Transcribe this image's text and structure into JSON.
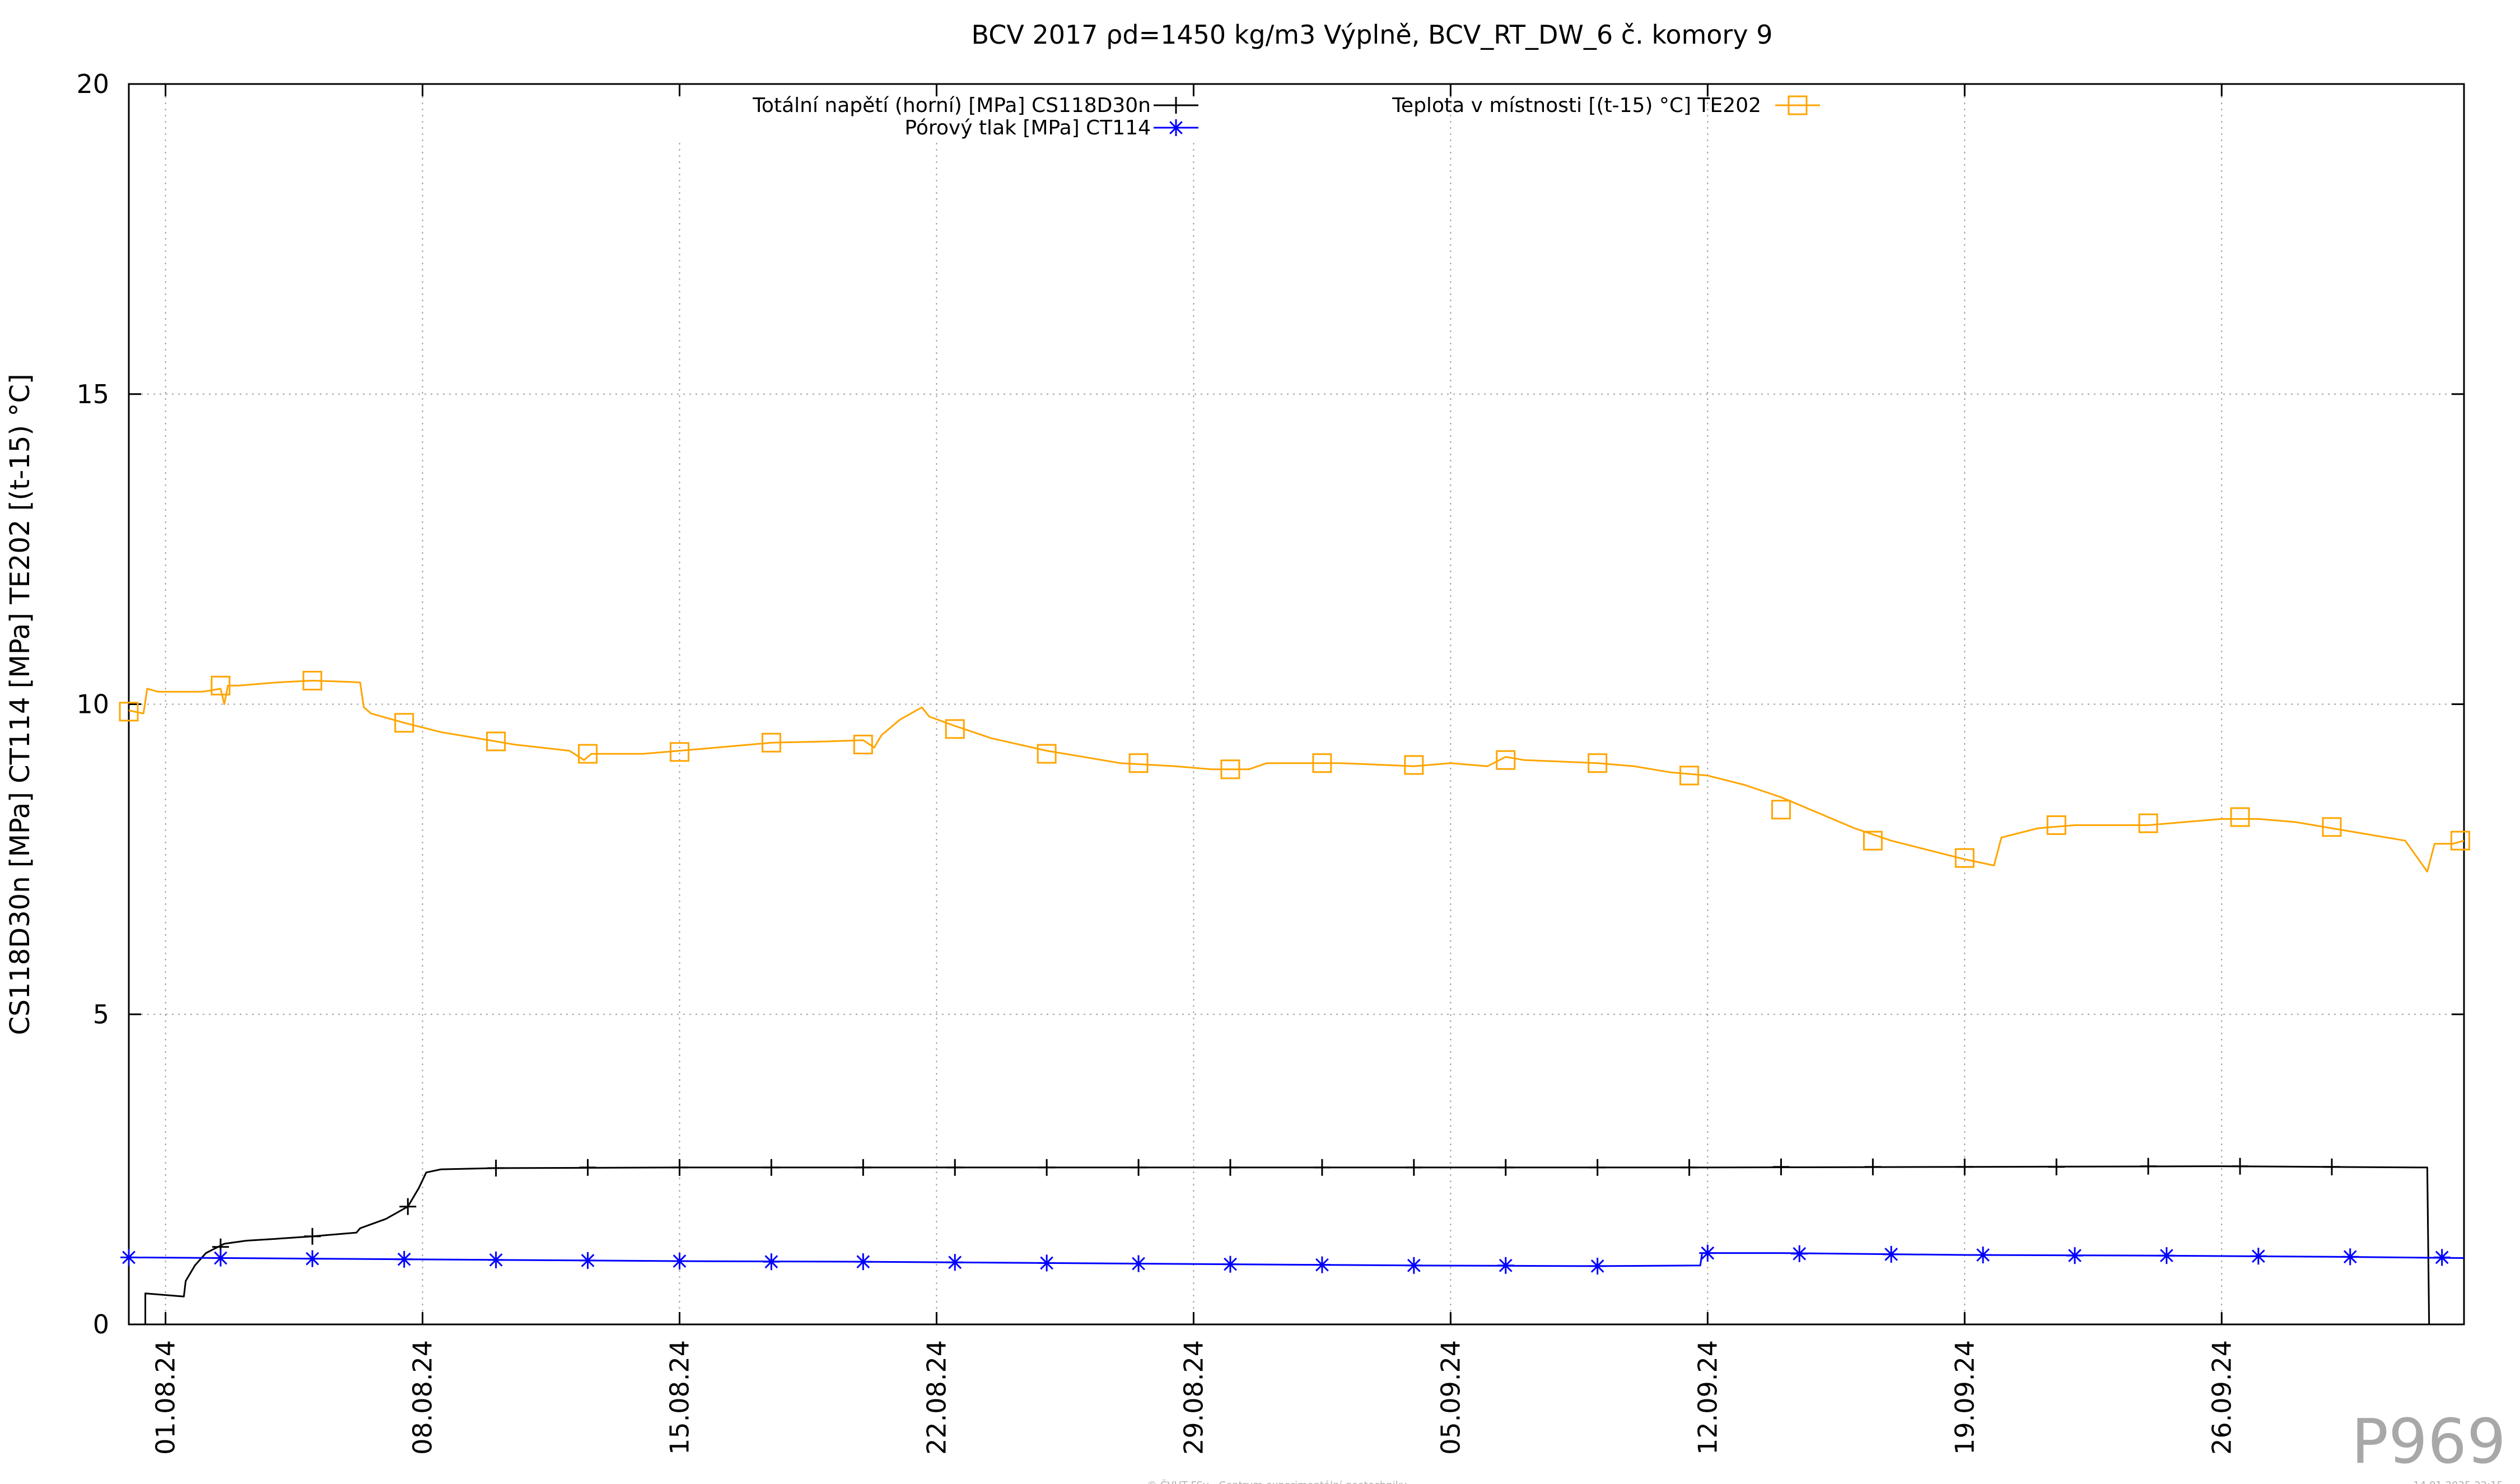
{
  "chart_data": {
    "type": "line",
    "title": "BCV 2017 ρd=1450 kg/m3 Výplně, BCV_RT_DW_6 č. komory 9",
    "ylabel": "CS118D30n [MPa] CT114 [MPa] TE202 [(t-15) °C]",
    "xlabel": "",
    "ylim": [
      0,
      20
    ],
    "yticks": [
      0,
      5,
      10,
      15,
      20
    ],
    "x_unit": "days since 30.07.24",
    "xlim": [
      0,
      63.6
    ],
    "xticks": [
      {
        "x": 1,
        "label": "01.08.24"
      },
      {
        "x": 8,
        "label": "08.08.24"
      },
      {
        "x": 15,
        "label": "15.08.24"
      },
      {
        "x": 22,
        "label": "22.08.24"
      },
      {
        "x": 29,
        "label": "29.08.24"
      },
      {
        "x": 36,
        "label": "05.09.24"
      },
      {
        "x": 43,
        "label": "12.09.24"
      },
      {
        "x": 50,
        "label": "19.09.24"
      },
      {
        "x": 57,
        "label": "26.09.24"
      }
    ],
    "grid": true,
    "series": [
      {
        "name": "Totální napětí (horní) [MPa] CS118D30n",
        "color": "#000000",
        "marker": "plus",
        "points": [
          [
            0,
            0
          ],
          [
            0.45,
            0
          ],
          [
            0.45,
            0.5
          ],
          [
            1.5,
            0.45
          ],
          [
            1.55,
            0.7
          ],
          [
            1.8,
            0.95
          ],
          [
            2.1,
            1.15
          ],
          [
            2.6,
            1.3
          ],
          [
            3.2,
            1.35
          ],
          [
            4,
            1.38
          ],
          [
            5,
            1.42
          ],
          [
            6.2,
            1.48
          ],
          [
            6.3,
            1.55
          ],
          [
            7,
            1.7
          ],
          [
            7.6,
            1.9
          ],
          [
            7.9,
            2.2
          ],
          [
            8.1,
            2.45
          ],
          [
            8.5,
            2.5
          ],
          [
            10,
            2.52
          ],
          [
            15,
            2.53
          ],
          [
            22,
            2.53
          ],
          [
            29,
            2.53
          ],
          [
            36,
            2.53
          ],
          [
            43,
            2.53
          ],
          [
            50,
            2.54
          ],
          [
            57,
            2.55
          ],
          [
            62.6,
            2.53
          ],
          [
            62.65,
            0
          ],
          [
            63.6,
            0
          ]
        ],
        "marker_points": [
          [
            2.5,
            1.25
          ],
          [
            5,
            1.42
          ],
          [
            7.6,
            1.9
          ],
          [
            10,
            2.52
          ],
          [
            12.5,
            2.53
          ],
          [
            15,
            2.53
          ],
          [
            17.5,
            2.53
          ],
          [
            20,
            2.53
          ],
          [
            22.5,
            2.53
          ],
          [
            25,
            2.53
          ],
          [
            27.5,
            2.53
          ],
          [
            30,
            2.53
          ],
          [
            32.5,
            2.53
          ],
          [
            35,
            2.53
          ],
          [
            37.5,
            2.53
          ],
          [
            40,
            2.53
          ],
          [
            42.5,
            2.53
          ],
          [
            45,
            2.54
          ],
          [
            47.5,
            2.54
          ],
          [
            50,
            2.54
          ],
          [
            52.5,
            2.54
          ],
          [
            55,
            2.55
          ],
          [
            57.5,
            2.55
          ],
          [
            60,
            2.54
          ]
        ]
      },
      {
        "name": "Pórový tlak [MPa] CT114",
        "color": "#0000ff",
        "marker": "star",
        "points": [
          [
            0,
            1.08
          ],
          [
            5,
            1.06
          ],
          [
            10,
            1.04
          ],
          [
            15,
            1.02
          ],
          [
            20,
            1.01
          ],
          [
            25,
            0.99
          ],
          [
            30,
            0.97
          ],
          [
            35,
            0.95
          ],
          [
            40,
            0.94
          ],
          [
            42.8,
            0.95
          ],
          [
            42.85,
            1.15
          ],
          [
            45,
            1.15
          ],
          [
            50,
            1.12
          ],
          [
            55,
            1.11
          ],
          [
            60,
            1.09
          ],
          [
            63.6,
            1.07
          ]
        ],
        "marker_points": [
          [
            0,
            1.08
          ],
          [
            2.5,
            1.07
          ],
          [
            5,
            1.06
          ],
          [
            7.5,
            1.05
          ],
          [
            10,
            1.04
          ],
          [
            12.5,
            1.03
          ],
          [
            15,
            1.02
          ],
          [
            17.5,
            1.01
          ],
          [
            20,
            1.01
          ],
          [
            22.5,
            1.0
          ],
          [
            25,
            0.99
          ],
          [
            27.5,
            0.98
          ],
          [
            30,
            0.97
          ],
          [
            32.5,
            0.96
          ],
          [
            35,
            0.95
          ],
          [
            37.5,
            0.95
          ],
          [
            40,
            0.94
          ],
          [
            43,
            1.15
          ],
          [
            45.5,
            1.14
          ],
          [
            48,
            1.13
          ],
          [
            50.5,
            1.12
          ],
          [
            53,
            1.11
          ],
          [
            55.5,
            1.11
          ],
          [
            58,
            1.1
          ],
          [
            60.5,
            1.09
          ],
          [
            63,
            1.08
          ]
        ]
      },
      {
        "name": "Teplota v místnosti [(t-15) °C] TE202",
        "color": "#ffa500",
        "marker": "square",
        "points": [
          [
            0,
            9.9
          ],
          [
            0.4,
            9.85
          ],
          [
            0.5,
            10.25
          ],
          [
            0.8,
            10.2
          ],
          [
            1.5,
            10.2
          ],
          [
            2,
            10.2
          ],
          [
            2.5,
            10.25
          ],
          [
            2.6,
            10.0
          ],
          [
            2.7,
            10.3
          ],
          [
            3,
            10.3
          ],
          [
            4,
            10.35
          ],
          [
            5,
            10.38
          ],
          [
            6,
            10.36
          ],
          [
            6.3,
            10.35
          ],
          [
            6.4,
            9.95
          ],
          [
            6.6,
            9.85
          ],
          [
            7.5,
            9.7
          ],
          [
            8.5,
            9.55
          ],
          [
            9.5,
            9.45
          ],
          [
            10.5,
            9.35
          ],
          [
            12,
            9.25
          ],
          [
            12.4,
            9.1
          ],
          [
            12.6,
            9.2
          ],
          [
            14,
            9.2
          ],
          [
            15,
            9.25
          ],
          [
            16,
            9.3
          ],
          [
            17.5,
            9.38
          ],
          [
            19,
            9.4
          ],
          [
            20,
            9.42
          ],
          [
            20.3,
            9.3
          ],
          [
            20.5,
            9.5
          ],
          [
            21,
            9.75
          ],
          [
            21.6,
            9.95
          ],
          [
            21.8,
            9.8
          ],
          [
            22.5,
            9.65
          ],
          [
            23.5,
            9.45
          ],
          [
            25,
            9.25
          ],
          [
            27,
            9.05
          ],
          [
            28.5,
            9.0
          ],
          [
            29.5,
            8.95
          ],
          [
            30.5,
            8.95
          ],
          [
            31,
            9.05
          ],
          [
            33,
            9.05
          ],
          [
            35,
            9.0
          ],
          [
            36,
            9.05
          ],
          [
            37,
            9.0
          ],
          [
            37.5,
            9.15
          ],
          [
            38,
            9.1
          ],
          [
            40,
            9.05
          ],
          [
            41,
            9.0
          ],
          [
            42,
            8.9
          ],
          [
            43,
            8.85
          ],
          [
            44,
            8.7
          ],
          [
            45,
            8.5
          ],
          [
            46,
            8.25
          ],
          [
            47,
            8.0
          ],
          [
            48,
            7.8
          ],
          [
            49,
            7.65
          ],
          [
            50,
            7.5
          ],
          [
            50.8,
            7.4
          ],
          [
            51,
            7.85
          ],
          [
            52,
            8.0
          ],
          [
            53,
            8.05
          ],
          [
            54,
            8.05
          ],
          [
            55,
            8.05
          ],
          [
            56,
            8.1
          ],
          [
            57,
            8.15
          ],
          [
            58,
            8.15
          ],
          [
            59,
            8.1
          ],
          [
            60,
            8.0
          ],
          [
            61,
            7.9
          ],
          [
            62,
            7.8
          ],
          [
            62.6,
            7.3
          ],
          [
            62.8,
            7.75
          ],
          [
            63.3,
            7.75
          ],
          [
            63.6,
            7.8
          ]
        ],
        "marker_points": [
          [
            0,
            9.88
          ],
          [
            2.5,
            10.3
          ],
          [
            5,
            10.38
          ],
          [
            7.5,
            9.7
          ],
          [
            10,
            9.4
          ],
          [
            12.5,
            9.2
          ],
          [
            15,
            9.23
          ],
          [
            17.5,
            9.38
          ],
          [
            20,
            9.35
          ],
          [
            22.5,
            9.6
          ],
          [
            25,
            9.2
          ],
          [
            27.5,
            9.05
          ],
          [
            30,
            8.95
          ],
          [
            32.5,
            9.05
          ],
          [
            35,
            9.02
          ],
          [
            37.5,
            9.1
          ],
          [
            40,
            9.05
          ],
          [
            42.5,
            8.85
          ],
          [
            45,
            8.3
          ],
          [
            47.5,
            7.8
          ],
          [
            50,
            7.52
          ],
          [
            52.5,
            8.05
          ],
          [
            55,
            8.08
          ],
          [
            57.5,
            8.18
          ],
          [
            60,
            8.02
          ],
          [
            63.5,
            7.8
          ]
        ]
      }
    ],
    "legend": {
      "placement": "top"
    }
  },
  "footer": {
    "center": "© ČVUT FSv - Centrum experimentální geotechniky",
    "right": "14.01.2025 22:15",
    "watermark": "P969"
  }
}
